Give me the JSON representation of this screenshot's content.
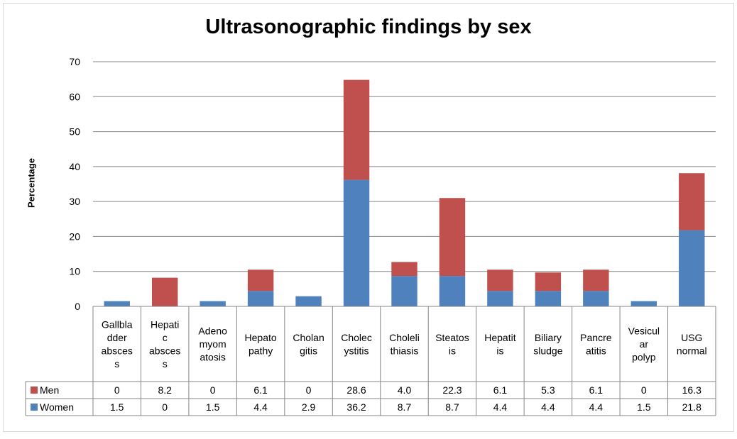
{
  "chart_data": {
    "type": "bar",
    "stacked": true,
    "title": "Ultrasonographic findings by sex",
    "xlabel": "",
    "ylabel": "Percentage",
    "ylim": [
      0,
      70
    ],
    "yticks": [
      0,
      10,
      20,
      30,
      40,
      50,
      60,
      70
    ],
    "grid": true,
    "legend": "data-table",
    "categories": [
      "Gallbladder abscess",
      "Hepatic abscess",
      "Adenomyomatosis",
      "Hepatopathy",
      "Cholangitis",
      "Cholecystitis",
      "Cholelithiasis",
      "Steatosis",
      "Hepatitis",
      "Biliary sludge",
      "Pancreatitis",
      "Vesicular polyp",
      "USG normal"
    ],
    "category_lines": [
      [
        "Gallbla",
        "dder",
        "absces",
        "s"
      ],
      [
        "Hepati",
        "c",
        "absces",
        "s"
      ],
      [
        "Adeno",
        "myom",
        "atosis"
      ],
      [
        "Hepato",
        "pathy"
      ],
      [
        "Cholan",
        "gitis"
      ],
      [
        "Cholec",
        "ystitis"
      ],
      [
        "Choleli",
        "thiasis"
      ],
      [
        "Steatos",
        "is"
      ],
      [
        "Hepatit",
        "is"
      ],
      [
        "Biliary",
        "sludge"
      ],
      [
        "Pancre",
        "atitis"
      ],
      [
        "Vesicul",
        "ar",
        "polyp"
      ],
      [
        "USG",
        "normal"
      ]
    ],
    "series": [
      {
        "name": "Women",
        "color": "#4f81bd",
        "values": [
          1.5,
          0,
          1.5,
          4.4,
          2.9,
          36.2,
          8.7,
          8.7,
          4.4,
          4.4,
          4.4,
          1.5,
          21.8
        ],
        "labels": [
          "1.5",
          "0",
          "1.5",
          "4.4",
          "2.9",
          "36.2",
          "8.7",
          "8.7",
          "4.4",
          "4.4",
          "4.4",
          "1.5",
          "21.8"
        ]
      },
      {
        "name": "Men",
        "color": "#c0504d",
        "values": [
          0,
          8.2,
          0,
          6.1,
          0,
          28.6,
          4.0,
          22.3,
          6.1,
          5.3,
          6.1,
          0,
          16.3
        ],
        "labels": [
          "0",
          "8.2",
          "0",
          "6.1",
          "0",
          "28.6",
          "4.0",
          "22.3",
          "6.1",
          "5.3",
          "6.1",
          "0",
          "16.3"
        ]
      }
    ]
  }
}
